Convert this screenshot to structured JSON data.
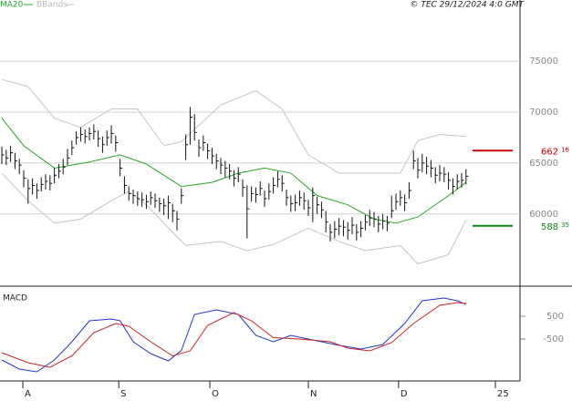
{
  "chart_data": {
    "type": "ohlc",
    "copyright": "© TEC 29/12/2024 4:0 GMT",
    "xlim": [
      -0.42,
      118.33
    ],
    "xticks": [
      {
        "value": 4.8,
        "label": "A"
      },
      {
        "value": 26.7,
        "label": "S"
      },
      {
        "value": 47.5,
        "label": "O"
      },
      {
        "value": 70,
        "label": "N"
      },
      {
        "value": 90.6,
        "label": "D"
      },
      {
        "value": 112.7,
        "label": "25"
      }
    ],
    "ylim": [
      53000,
      81000
    ],
    "yticks": [
      60000,
      65000,
      70000,
      75000
    ],
    "grid": true,
    "bar_color": "#111111",
    "high": [
      66600,
      66300,
      66700,
      66000,
      65400,
      64300,
      63400,
      63500,
      63000,
      63600,
      63900,
      63800,
      64500,
      64900,
      65400,
      66400,
      67200,
      68100,
      68500,
      68300,
      68500,
      68800,
      68200,
      67600,
      68200,
      68700,
      67700,
      65400,
      63700,
      62700,
      62400,
      62200,
      62100,
      61900,
      62200,
      62000,
      61600,
      61500,
      61800,
      61000,
      60300,
      62500,
      67800,
      70500,
      69800,
      67300,
      67700,
      66900,
      66500,
      65900,
      65500,
      65200,
      64900,
      64300,
      64600,
      63400,
      62800,
      62700,
      62600,
      63200,
      62300,
      63000,
      63600,
      64200,
      63800,
      62400,
      61800,
      61900,
      62300,
      62100,
      61400,
      62600,
      61700,
      61200,
      60300,
      59000,
      59300,
      59600,
      59400,
      59200,
      59700,
      59000,
      59300,
      59900,
      60400,
      60200,
      59800,
      60000,
      59800,
      61800,
      62000,
      62300,
      61900,
      63100,
      66200,
      65500,
      65900,
      65600,
      65300,
      64600,
      64800,
      64600,
      64100,
      63500,
      63900,
      64000,
      64400
    ],
    "low": [
      64900,
      64800,
      65100,
      64400,
      63900,
      62600,
      61000,
      61900,
      61500,
      62200,
      62400,
      62300,
      63000,
      63500,
      63900,
      64800,
      65800,
      66800,
      67100,
      66900,
      67200,
      67300,
      66600,
      66000,
      66700,
      66900,
      66100,
      63700,
      62000,
      61300,
      61000,
      60800,
      60700,
      60500,
      60900,
      60600,
      60200,
      59900,
      59500,
      59200,
      58400,
      61000,
      65300,
      66800,
      67200,
      65600,
      66200,
      65400,
      64900,
      64400,
      63900,
      63600,
      63400,
      62700,
      63100,
      61700,
      57600,
      61200,
      61100,
      61800,
      60700,
      61400,
      62000,
      62600,
      62200,
      60800,
      60200,
      60300,
      60800,
      60400,
      59800,
      59200,
      60000,
      59600,
      58200,
      57300,
      57600,
      57900,
      57800,
      57500,
      58000,
      57400,
      57700,
      58400,
      58800,
      58700,
      58200,
      58500,
      58300,
      59600,
      60400,
      60800,
      60300,
      61500,
      64400,
      63500,
      64100,
      63900,
      63600,
      63000,
      63200,
      63100,
      62400,
      61900,
      62400,
      62600,
      62900
    ],
    "close": [
      65800,
      65500,
      66000,
      65200,
      64800,
      63500,
      62500,
      62800,
      62300,
      62900,
      63200,
      63000,
      63800,
      64200,
      64600,
      65500,
      66500,
      67500,
      67800,
      67600,
      67900,
      68100,
      67400,
      66800,
      67500,
      67900,
      67000,
      64500,
      62800,
      62000,
      61800,
      61500,
      61400,
      61200,
      61600,
      61300,
      61000,
      60800,
      61100,
      60300,
      59500,
      61800,
      66800,
      69500,
      68000,
      66500,
      67000,
      66200,
      65700,
      65200,
      64800,
      64500,
      64200,
      63500,
      63900,
      62600,
      60500,
      62000,
      61900,
      62500,
      61500,
      62200,
      62800,
      63400,
      63000,
      61600,
      61000,
      61100,
      61600,
      61300,
      60600,
      61800,
      60900,
      60400,
      59200,
      58200,
      58500,
      58800,
      58700,
      58400,
      58900,
      58200,
      58600,
      59200,
      59600,
      59500,
      59000,
      59300,
      59100,
      60300,
      61200,
      61600,
      61100,
      62300,
      65200,
      64300,
      65000,
      64700,
      64500,
      63800,
      64000,
      63900,
      63300,
      62700,
      63200,
      63300,
      63700
    ],
    "ma": {
      "name": "MA20",
      "color": "#22aa22",
      "x": [
        0,
        5,
        12,
        20,
        27,
        33,
        41,
        48,
        54,
        60,
        66,
        72,
        79,
        85,
        90,
        95,
        102,
        106
      ],
      "values": [
        69400,
        66700,
        64500,
        65100,
        65800,
        64900,
        62700,
        63100,
        64000,
        64500,
        64000,
        61800,
        60900,
        59500,
        59100,
        59700,
        61800,
        63100
      ]
    },
    "bbands": {
      "name": "BBands",
      "color": "#c4c4c4",
      "upper": {
        "x": [
          0,
          6,
          12,
          18,
          25,
          31,
          37,
          41,
          50,
          58,
          64,
          70,
          77,
          85,
          91,
          95,
          100,
          106
        ],
        "values": [
          73200,
          72500,
          69400,
          68500,
          70300,
          70300,
          66700,
          67100,
          70700,
          72100,
          70300,
          65800,
          64000,
          64000,
          64000,
          67200,
          67800,
          67600
        ]
      },
      "lower": {
        "x": [
          0,
          6,
          12,
          18,
          25,
          29,
          33,
          39,
          42,
          50,
          56,
          62,
          70,
          77,
          83,
          91,
          95,
          102,
          106
        ],
        "values": [
          64000,
          61300,
          59100,
          59500,
          61300,
          62200,
          60900,
          58200,
          56900,
          57300,
          56400,
          57000,
          58600,
          57300,
          56400,
          56900,
          55100,
          56000,
          59400
        ]
      }
    },
    "markers": [
      {
        "value": 66216,
        "label": "662",
        "decimals": "16",
        "color": "#cc0000"
      },
      {
        "value": 58835,
        "label": "588",
        "decimals": "35",
        "color": "#118811"
      }
    ],
    "macd": {
      "title": "MACD",
      "ylim": [
        -2340,
        1740
      ],
      "yticks": [
        500,
        -500
      ],
      "series": [
        {
          "color": "#2233cc",
          "x": [
            0,
            4,
            8,
            12,
            16,
            20,
            25,
            27,
            30,
            34,
            38,
            41,
            44,
            49,
            54,
            58,
            62,
            66,
            71,
            76,
            82,
            87,
            92,
            96,
            101,
            104,
            106
          ],
          "values": [
            -1420,
            -1820,
            -1940,
            -1420,
            -620,
            300,
            380,
            300,
            -620,
            -1140,
            -1460,
            -1000,
            580,
            780,
            580,
            -340,
            -620,
            -340,
            -540,
            -740,
            -940,
            -740,
            180,
            1180,
            1300,
            1180,
            1020
          ]
        },
        {
          "color": "#cc2222",
          "x": [
            0,
            6,
            11,
            16,
            21,
            26,
            29,
            34,
            39,
            43,
            47,
            53,
            57,
            62,
            68,
            75,
            79,
            84,
            89,
            94,
            100,
            104,
            106
          ],
          "values": [
            -1100,
            -1540,
            -1740,
            -1240,
            -220,
            180,
            60,
            -620,
            -1240,
            -1020,
            100,
            660,
            300,
            -440,
            -500,
            -620,
            -900,
            -1020,
            -660,
            180,
            980,
            1100,
            1060
          ]
        }
      ]
    }
  }
}
